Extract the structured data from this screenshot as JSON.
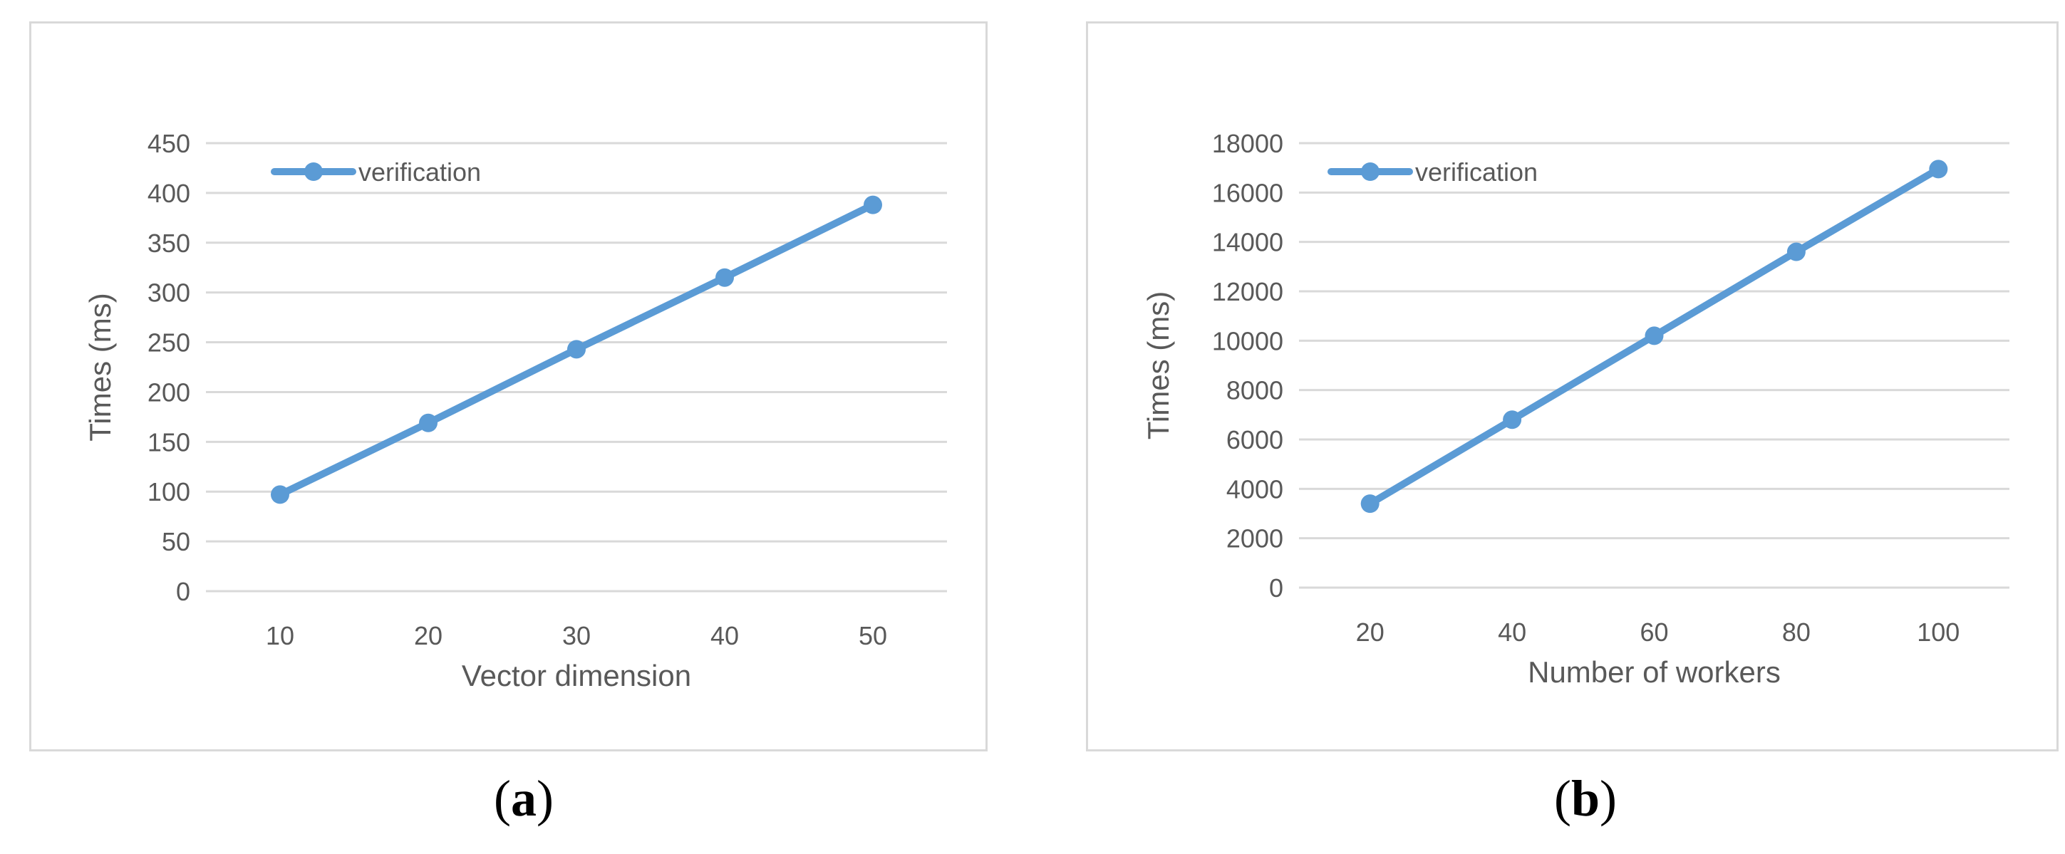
{
  "chart_data": [
    {
      "type": "line",
      "panel_label": "a",
      "xlabel": "Vector dimension",
      "ylabel": "Times (ms)",
      "categories": [
        10,
        20,
        30,
        40,
        50
      ],
      "ylim": [
        0,
        450
      ],
      "yticks": [
        0,
        50,
        100,
        150,
        200,
        250,
        300,
        350,
        400,
        450
      ],
      "grid": true,
      "legend": "top-left",
      "series": [
        {
          "name": "verification",
          "values": [
            97,
            169,
            243,
            315,
            388
          ]
        }
      ],
      "color": "#5b9bd5"
    },
    {
      "type": "line",
      "panel_label": "b",
      "xlabel": "Number of workers",
      "ylabel": "Times (ms)",
      "categories": [
        20,
        40,
        60,
        80,
        100
      ],
      "ylim": [
        0,
        18000
      ],
      "yticks": [
        0,
        2000,
        4000,
        6000,
        8000,
        10000,
        12000,
        14000,
        16000,
        18000
      ],
      "grid": true,
      "legend": "top-left",
      "series": [
        {
          "name": "verification",
          "values": [
            3400,
            6800,
            10200,
            13600,
            16950
          ]
        }
      ],
      "color": "#5b9bd5"
    }
  ]
}
